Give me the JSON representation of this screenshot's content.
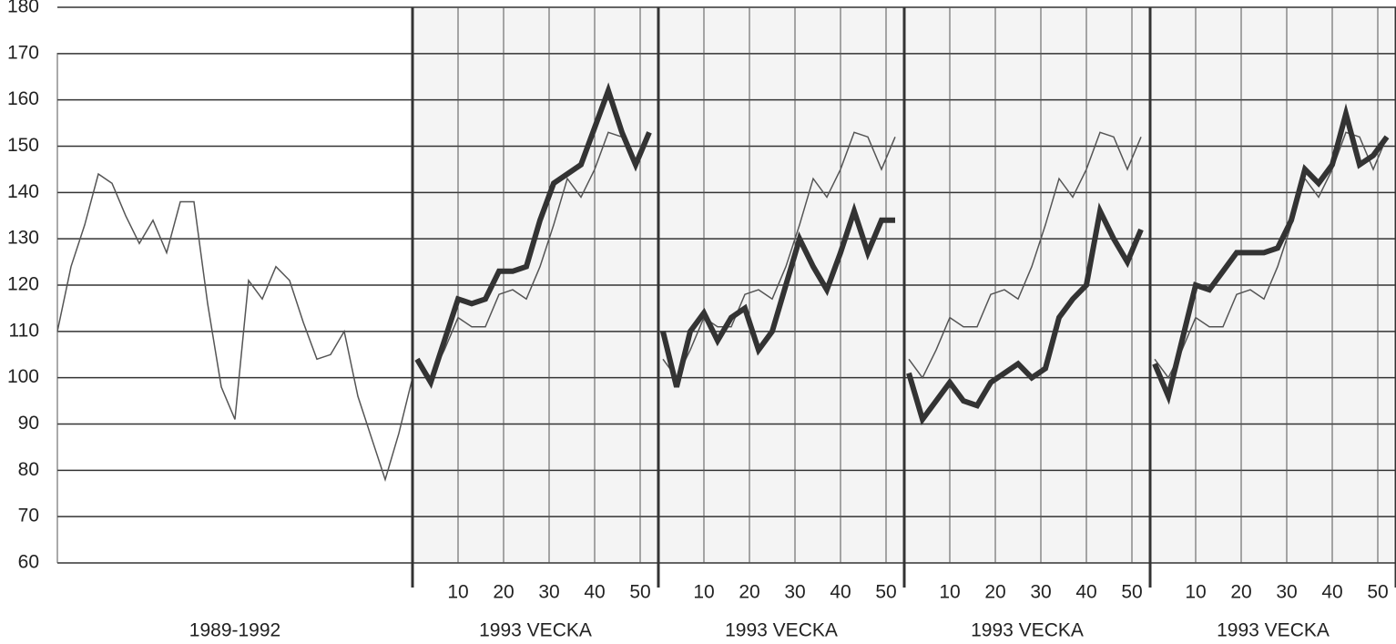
{
  "chart_data": [
    {
      "type": "line",
      "xlabel": "1989-1992",
      "ylim": [
        60,
        180
      ],
      "yticks": [
        60,
        70,
        80,
        90,
        100,
        110,
        120,
        130,
        140,
        150,
        160,
        170,
        180
      ],
      "series": [
        {
          "color": "#555555",
          "linewidth": 1.5,
          "values": [
            110,
            124,
            133,
            144,
            142,
            135,
            129,
            134,
            127,
            138,
            138,
            116,
            98,
            91,
            121,
            117,
            124,
            121,
            112,
            104,
            105,
            110,
            96,
            87,
            78,
            88,
            100
          ]
        }
      ]
    },
    {
      "type": "line",
      "xlabel": "1993 VECKA",
      "x": [
        1,
        4,
        7,
        10,
        13,
        16,
        19,
        22,
        25,
        28,
        31,
        34,
        37,
        40,
        43,
        46,
        49,
        52
      ],
      "xlim": [
        0,
        54
      ],
      "xticks": [
        10,
        20,
        30,
        40,
        50
      ],
      "ylim": [
        60,
        180
      ],
      "yticks": [
        60,
        70,
        80,
        90,
        100,
        110,
        120,
        130,
        140,
        150,
        160,
        170,
        180
      ],
      "series": [
        {
          "color": "#555555",
          "linewidth": 1.5,
          "values": [
            104,
            100,
            106,
            113,
            111,
            111,
            118,
            119,
            117,
            124,
            133,
            143,
            139,
            145,
            153,
            152,
            145,
            152
          ]
        },
        {
          "color": "#333333",
          "linewidth": 6,
          "values": [
            104,
            99,
            108,
            117,
            116,
            117,
            123,
            123,
            124,
            134,
            142,
            144,
            146,
            154,
            162,
            153,
            146,
            153
          ]
        }
      ]
    },
    {
      "type": "line",
      "xlabel": "1993 VECKA",
      "x": [
        1,
        4,
        7,
        10,
        13,
        16,
        19,
        22,
        25,
        28,
        31,
        34,
        37,
        40,
        43,
        46,
        49,
        52
      ],
      "xlim": [
        0,
        54
      ],
      "xticks": [
        10,
        20,
        30,
        40,
        50
      ],
      "ylim": [
        60,
        180
      ],
      "yticks": [
        60,
        70,
        80,
        90,
        100,
        110,
        120,
        130,
        140,
        150,
        160,
        170,
        180
      ],
      "series": [
        {
          "color": "#555555",
          "linewidth": 1.5,
          "values": [
            104,
            100,
            106,
            113,
            111,
            111,
            118,
            119,
            117,
            124,
            133,
            143,
            139,
            145,
            153,
            152,
            145,
            152
          ]
        },
        {
          "color": "#333333",
          "linewidth": 6,
          "values": [
            110,
            98,
            110,
            114,
            108,
            113,
            115,
            106,
            110,
            120,
            130,
            124,
            119,
            127,
            136,
            127,
            134,
            134
          ]
        }
      ]
    },
    {
      "type": "line",
      "xlabel": "1993 VECKA",
      "x": [
        1,
        4,
        7,
        10,
        13,
        16,
        19,
        22,
        25,
        28,
        31,
        34,
        37,
        40,
        43,
        46,
        49,
        52
      ],
      "xlim": [
        0,
        54
      ],
      "xticks": [
        10,
        20,
        30,
        40,
        50
      ],
      "ylim": [
        60,
        180
      ],
      "yticks": [
        60,
        70,
        80,
        90,
        100,
        110,
        120,
        130,
        140,
        150,
        160,
        170,
        180
      ],
      "series": [
        {
          "color": "#555555",
          "linewidth": 1.5,
          "values": [
            104,
            100,
            106,
            113,
            111,
            111,
            118,
            119,
            117,
            124,
            133,
            143,
            139,
            145,
            153,
            152,
            145,
            152
          ]
        },
        {
          "color": "#333333",
          "linewidth": 6,
          "values": [
            101,
            91,
            95,
            99,
            95,
            94,
            99,
            101,
            103,
            100,
            102,
            113,
            117,
            120,
            136,
            130,
            125,
            132
          ]
        }
      ]
    },
    {
      "type": "line",
      "xlabel": "1993 VECKA",
      "x": [
        1,
        4,
        7,
        10,
        13,
        16,
        19,
        22,
        25,
        28,
        31,
        34,
        37,
        40,
        43,
        46,
        49,
        52
      ],
      "xlim": [
        0,
        54
      ],
      "xticks": [
        10,
        20,
        30,
        40,
        50
      ],
      "ylim": [
        60,
        180
      ],
      "yticks": [
        60,
        70,
        80,
        90,
        100,
        110,
        120,
        130,
        140,
        150,
        160,
        170,
        180
      ],
      "series": [
        {
          "color": "#555555",
          "linewidth": 1.5,
          "values": [
            104,
            100,
            106,
            113,
            111,
            111,
            118,
            119,
            117,
            124,
            133,
            143,
            139,
            145,
            153,
            152,
            145,
            152
          ]
        },
        {
          "color": "#333333",
          "linewidth": 6,
          "values": [
            103,
            96,
            108,
            120,
            119,
            123,
            127,
            127,
            127,
            128,
            134,
            145,
            142,
            146,
            157,
            146,
            148,
            152
          ]
        }
      ]
    }
  ]
}
